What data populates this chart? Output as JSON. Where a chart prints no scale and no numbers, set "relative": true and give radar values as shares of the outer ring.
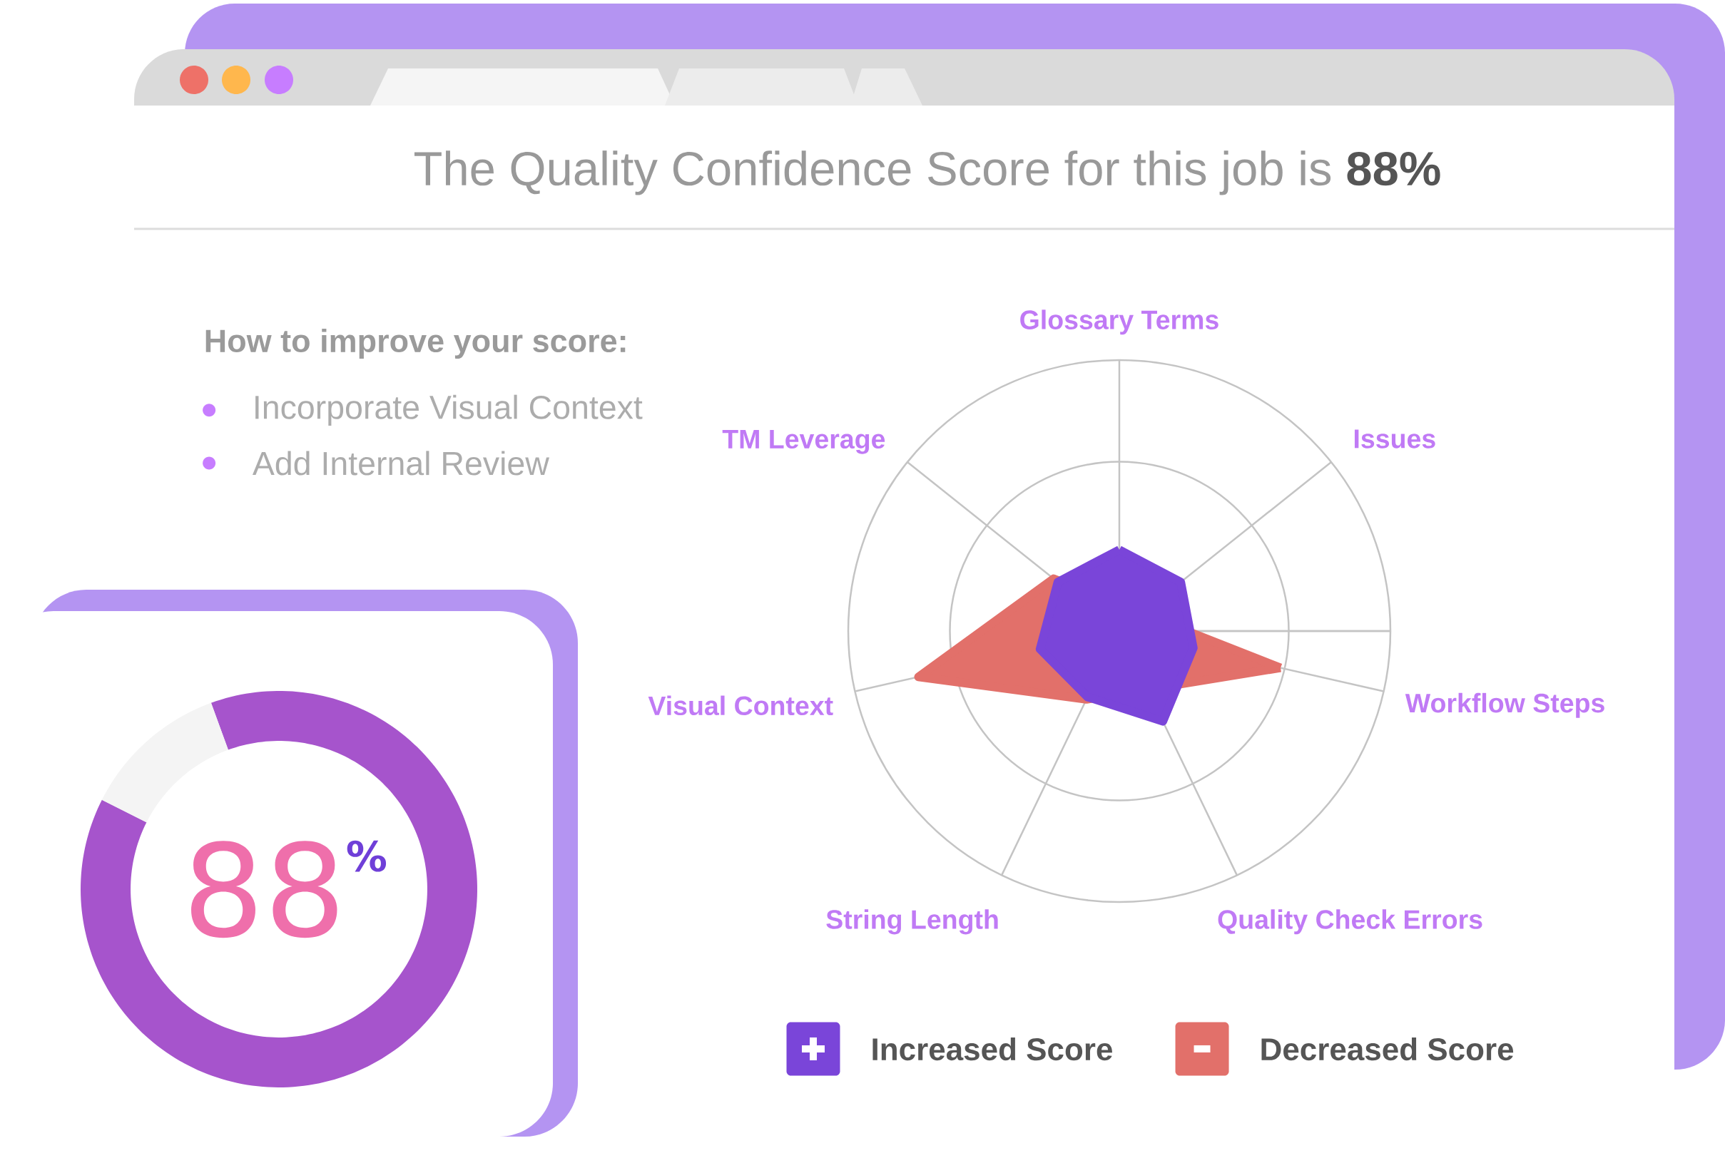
{
  "chart_data": [
    {
      "type": "radar",
      "title": "The Quality Confidence Score for this job is **88%**",
      "categories": [
        "Glossary Terms",
        "Issues",
        "Workflow Steps",
        "Quality Check Errors",
        "String Length",
        "Visual Context",
        "TM Leverage"
      ],
      "relative": true,
      "grid": true,
      "legend": "bottom",
      "series": [
        {
          "name": "Increased Score",
          "color": "#7a45d9",
          "values": [
            0.3,
            0.29,
            0.28,
            0.37,
            0.27,
            0.3,
            0.29
          ]
        },
        {
          "name": "Decreased Score",
          "color": "#e2706a",
          "values": [
            null,
            null,
            0.61,
            null,
            0.28,
            0.76,
            0.31
          ]
        }
      ]
    },
    {
      "type": "other",
      "title": "How to improve your score:",
      "annotations": [
        "Incorporate Visual Context",
        "Add Internal Review"
      ]
    },
    {
      "type": "donut",
      "categories": [
        null,
        null
      ],
      "values": [
        88,
        12
      ],
      "colors": [
        "#a654cc",
        "#f4f4f4"
      ],
      "annotations": [
        "88$^{%}$"
      ]
    }
  ]
}
